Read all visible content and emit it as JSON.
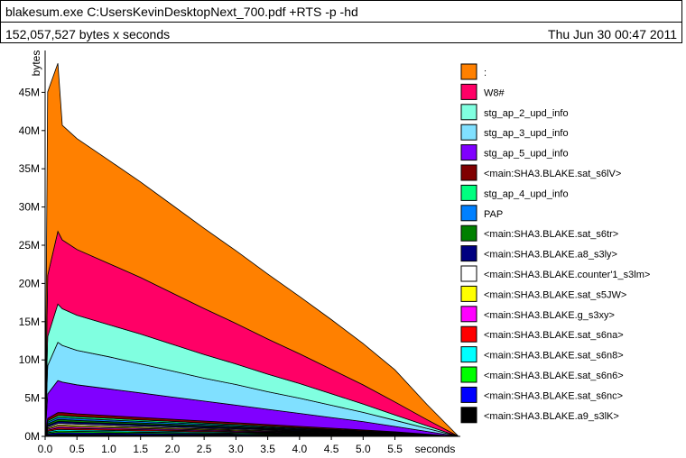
{
  "header": {
    "title": "blakesum.exe C:UsersKevinDesktopNext_700.pdf +RTS -p -hd",
    "subtitle": "152,057,527 bytes x seconds",
    "date": "Thu Jun 30 00:47 2011"
  },
  "chart_data": {
    "type": "area",
    "stacked": true,
    "ylabel": "bytes",
    "xlabel": "seconds",
    "xlim": [
      0,
      6.5
    ],
    "ylim": [
      0,
      50000000
    ],
    "x_ticks": [
      0.0,
      0.5,
      1.0,
      1.5,
      2.0,
      2.5,
      3.0,
      3.5,
      4.0,
      4.5,
      5.0,
      5.5
    ],
    "x_tick_labels": [
      "0.0",
      "0.5",
      "1.0",
      "1.5",
      "2.0",
      "2.5",
      "3.0",
      "3.5",
      "4.0",
      "4.5",
      "5.0",
      "5.5"
    ],
    "y_ticks": [
      0,
      5000000,
      10000000,
      15000000,
      20000000,
      25000000,
      30000000,
      35000000,
      40000000,
      45000000
    ],
    "y_tick_labels": [
      "0M",
      "5M",
      "10M",
      "15M",
      "20M",
      "25M",
      "30M",
      "35M",
      "40M",
      "45M"
    ],
    "x": [
      0.0,
      0.04,
      0.2,
      0.27,
      0.5,
      1.0,
      1.5,
      2.0,
      2.5,
      3.0,
      3.5,
      4.0,
      4.5,
      5.0,
      5.5,
      6.0,
      6.5
    ],
    "series": [
      {
        "name": "<main:SHA3.BLAKE.a9_s3lK>",
        "color": "#000000",
        "values": [
          0,
          200000,
          300000,
          300000,
          280000,
          260000,
          240000,
          220000,
          200000,
          180000,
          160000,
          140000,
          120000,
          100000,
          80000,
          40000,
          0
        ]
      },
      {
        "name": "<main:SHA3.BLAKE.sat_s6nc>",
        "color": "#0000ff",
        "values": [
          0,
          150000,
          200000,
          200000,
          190000,
          175000,
          160000,
          145000,
          130000,
          115000,
          100000,
          85000,
          70000,
          55000,
          40000,
          20000,
          0
        ]
      },
      {
        "name": "<main:SHA3.BLAKE.sat_s6n6>",
        "color": "#00ff00",
        "values": [
          0,
          150000,
          200000,
          200000,
          190000,
          175000,
          160000,
          145000,
          130000,
          115000,
          100000,
          85000,
          70000,
          55000,
          40000,
          20000,
          0
        ]
      },
      {
        "name": "<main:SHA3.BLAKE.sat_s6n8>",
        "color": "#00ffff",
        "values": [
          0,
          150000,
          200000,
          200000,
          190000,
          175000,
          160000,
          145000,
          130000,
          115000,
          100000,
          85000,
          70000,
          55000,
          40000,
          20000,
          0
        ]
      },
      {
        "name": "<main:SHA3.BLAKE.sat_s6na>",
        "color": "#ff0000",
        "values": [
          0,
          150000,
          200000,
          200000,
          190000,
          175000,
          160000,
          145000,
          130000,
          115000,
          100000,
          85000,
          70000,
          55000,
          40000,
          20000,
          0
        ]
      },
      {
        "name": "<main:SHA3.BLAKE.g_s3xy>",
        "color": "#ff00ff",
        "values": [
          0,
          150000,
          200000,
          200000,
          190000,
          175000,
          160000,
          145000,
          130000,
          115000,
          100000,
          85000,
          70000,
          55000,
          40000,
          20000,
          0
        ]
      },
      {
        "name": "<main:SHA3.BLAKE.sat_s5JW>",
        "color": "#ffff00",
        "values": [
          0,
          150000,
          200000,
          200000,
          190000,
          175000,
          160000,
          145000,
          130000,
          115000,
          100000,
          85000,
          70000,
          55000,
          40000,
          20000,
          0
        ]
      },
      {
        "name": "<main:SHA3.BLAKE.counter'1_s3lm>",
        "color": "#ffffff",
        "values": [
          0,
          150000,
          200000,
          200000,
          190000,
          175000,
          160000,
          145000,
          130000,
          115000,
          100000,
          85000,
          70000,
          55000,
          40000,
          20000,
          0
        ]
      },
      {
        "name": "<main:SHA3.BLAKE.a8_s3ly>",
        "color": "#000080",
        "values": [
          0,
          200000,
          250000,
          250000,
          240000,
          220000,
          200000,
          180000,
          160000,
          140000,
          120000,
          100000,
          80000,
          60000,
          40000,
          20000,
          0
        ]
      },
      {
        "name": "<main:SHA3.BLAKE.sat_s6tr>",
        "color": "#008000",
        "values": [
          0,
          200000,
          250000,
          250000,
          240000,
          220000,
          200000,
          180000,
          160000,
          140000,
          120000,
          100000,
          80000,
          60000,
          40000,
          20000,
          0
        ]
      },
      {
        "name": "PAP",
        "color": "#0080ff",
        "values": [
          0,
          200000,
          250000,
          250000,
          240000,
          220000,
          200000,
          180000,
          160000,
          140000,
          120000,
          100000,
          80000,
          60000,
          40000,
          20000,
          0
        ]
      },
      {
        "name": "stg_ap_4_upd_info",
        "color": "#00ff80",
        "values": [
          0,
          200000,
          250000,
          250000,
          240000,
          220000,
          200000,
          180000,
          160000,
          140000,
          120000,
          100000,
          80000,
          60000,
          40000,
          20000,
          0
        ]
      },
      {
        "name": "<main:SHA3.BLAKE.sat_s6lV>",
        "color": "#800000",
        "values": [
          0,
          300000,
          400000,
          400000,
          380000,
          350000,
          320000,
          290000,
          260000,
          230000,
          200000,
          170000,
          140000,
          110000,
          80000,
          40000,
          0
        ]
      },
      {
        "name": "stg_ap_5_upd_info",
        "color": "#8000ff",
        "values": [
          0,
          3200000,
          4200000,
          4000000,
          3800000,
          3500000,
          3200000,
          2900000,
          2600000,
          2300000,
          2000000,
          1700000,
          1400000,
          1100000,
          700000,
          350000,
          0
        ]
      },
      {
        "name": "stg_ap_3_upd_info",
        "color": "#80e0ff",
        "values": [
          0,
          3700000,
          5000000,
          4800000,
          4500000,
          4200000,
          3800000,
          3400000,
          3000000,
          2700000,
          2300000,
          2000000,
          1600000,
          1200000,
          800000,
          400000,
          0
        ]
      },
      {
        "name": "stg_ap_2_upd_info",
        "color": "#80ffe0",
        "values": [
          0,
          3800000,
          5000000,
          4800000,
          4600000,
          4200000,
          3900000,
          3500000,
          3100000,
          2700000,
          2300000,
          1900000,
          1500000,
          1100000,
          700000,
          350000,
          0
        ]
      },
      {
        "name": "W8#",
        "color": "#ff0066",
        "values": [
          0,
          8000000,
          9500000,
          9000000,
          8600000,
          8000000,
          7400000,
          6700000,
          6000000,
          5300000,
          4600000,
          3900000,
          3200000,
          2500000,
          1700000,
          800000,
          0
        ]
      },
      {
        "name": ":",
        "color": "#ff8000",
        "values": [
          0,
          24000000,
          22000000,
          15000000,
          14500000,
          13500000,
          12500000,
          11500000,
          10500000,
          9500000,
          8500000,
          7500000,
          6500000,
          5400000,
          4200000,
          2000000,
          0
        ]
      }
    ],
    "legend_order": [
      ":",
      "W8#",
      "stg_ap_2_upd_info",
      "stg_ap_3_upd_info",
      "stg_ap_5_upd_info",
      "<main:SHA3.BLAKE.sat_s6lV>",
      "stg_ap_4_upd_info",
      "PAP",
      "<main:SHA3.BLAKE.sat_s6tr>",
      "<main:SHA3.BLAKE.a8_s3ly>",
      "<main:SHA3.BLAKE.counter'1_s3lm>",
      "<main:SHA3.BLAKE.sat_s5JW>",
      "<main:SHA3.BLAKE.g_s3xy>",
      "<main:SHA3.BLAKE.sat_s6na>",
      "<main:SHA3.BLAKE.sat_s6n8>",
      "<main:SHA3.BLAKE.sat_s6n6>",
      "<main:SHA3.BLAKE.sat_s6nc>",
      "<main:SHA3.BLAKE.a9_s3lK>"
    ],
    "legend_position": "right",
    "grid": false
  }
}
